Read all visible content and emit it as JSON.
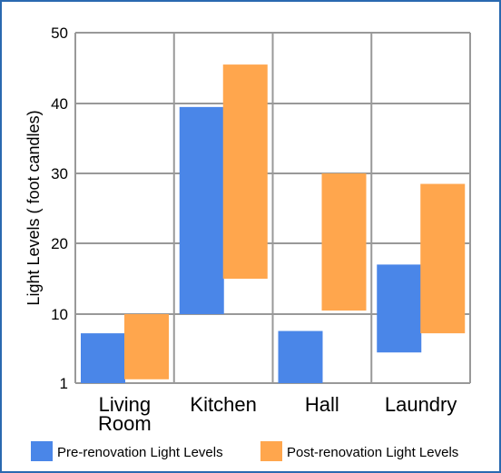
{
  "chart_data": {
    "type": "bar",
    "subtype": "floating-range",
    "categories": [
      "Living Room",
      "Kitchen",
      "Hall",
      "Laundry"
    ],
    "category_lines": [
      [
        "Living",
        "Room"
      ],
      [
        "Kitchen"
      ],
      [
        "Hall"
      ],
      [
        "Laundry"
      ]
    ],
    "series": [
      {
        "name": "Pre-renovation Light Levels",
        "color": "#4a86e8",
        "ranges": [
          [
            1,
            7.5
          ],
          [
            10,
            39.5
          ],
          [
            1,
            7.8
          ],
          [
            5,
            17
          ]
        ]
      },
      {
        "name": "Post-renovation Light Levels",
        "color": "#ffa64d",
        "ranges": [
          [
            1.5,
            10
          ],
          [
            15,
            45.5
          ],
          [
            10.5,
            30
          ],
          [
            7.5,
            28.5
          ]
        ]
      }
    ],
    "title": "",
    "xlabel": "",
    "ylabel": "Light Levels ( foot candles)",
    "yticks": [
      1,
      10,
      20,
      30,
      40,
      50
    ],
    "ylim": [
      1,
      50
    ],
    "grid": true,
    "legend_position": "bottom",
    "colors": {
      "frame": "#2a69b0",
      "grid": "#999999"
    }
  }
}
